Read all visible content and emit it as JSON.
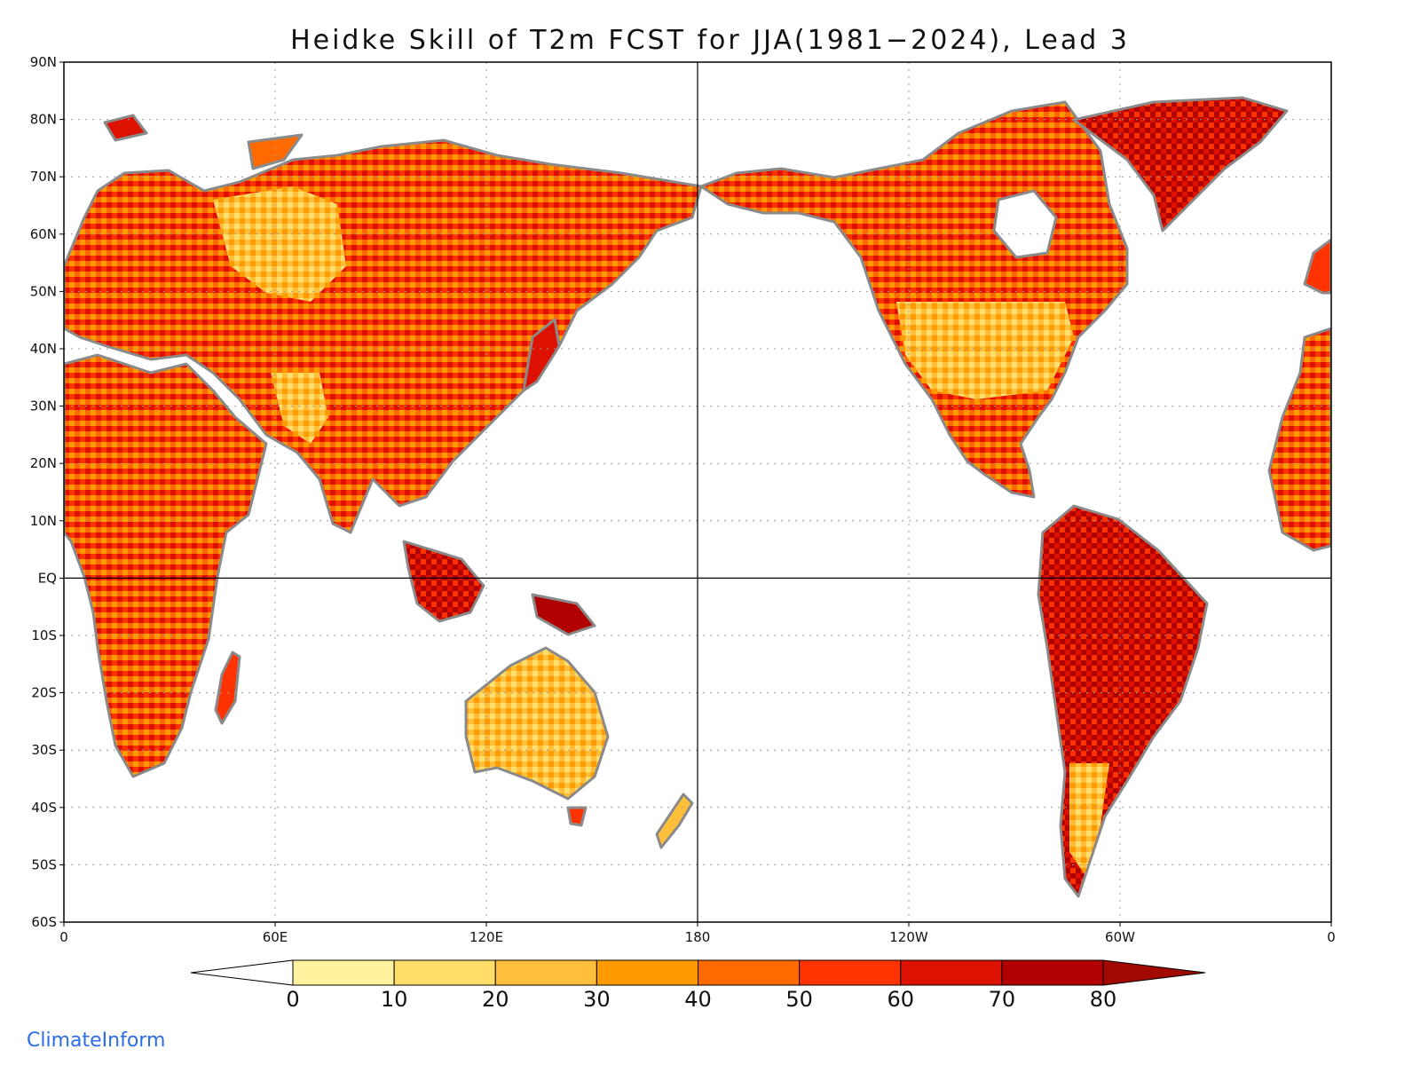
{
  "title": "Heidke Skill of T2m FCST for JJA(1981−2024), Lead 3",
  "credit": "ClimateInform",
  "axes": {
    "lat_labels": [
      "90N",
      "80N",
      "70N",
      "60N",
      "50N",
      "40N",
      "30N",
      "20N",
      "10N",
      "EQ",
      "10S",
      "20S",
      "30S",
      "40S",
      "50S",
      "60S"
    ],
    "lat_values": [
      90,
      80,
      70,
      60,
      50,
      40,
      30,
      20,
      10,
      0,
      -10,
      -20,
      -30,
      -40,
      -50,
      -60
    ],
    "lon_labels": [
      "0",
      "60E",
      "120E",
      "180",
      "120W",
      "60W",
      "0"
    ],
    "lon_values": [
      0,
      60,
      120,
      180,
      240,
      300,
      360
    ],
    "lon_range": [
      0,
      360
    ],
    "lat_range": [
      -60,
      90
    ],
    "grid": "dotted"
  },
  "colorbar": {
    "ticks": [
      "0",
      "10",
      "20",
      "30",
      "40",
      "50",
      "60",
      "70",
      "80"
    ],
    "colors": [
      "#ffffff",
      "#fff3a0",
      "#ffdf6a",
      "#ffbf3a",
      "#ff9a00",
      "#ff6a00",
      "#ff3300",
      "#dd1100",
      "#b00000",
      "#a00a00"
    ],
    "extend": "both"
  },
  "colors": {
    "coastline": "#8a8a8a",
    "lakes": "#000000",
    "graticule": "#999999"
  }
}
